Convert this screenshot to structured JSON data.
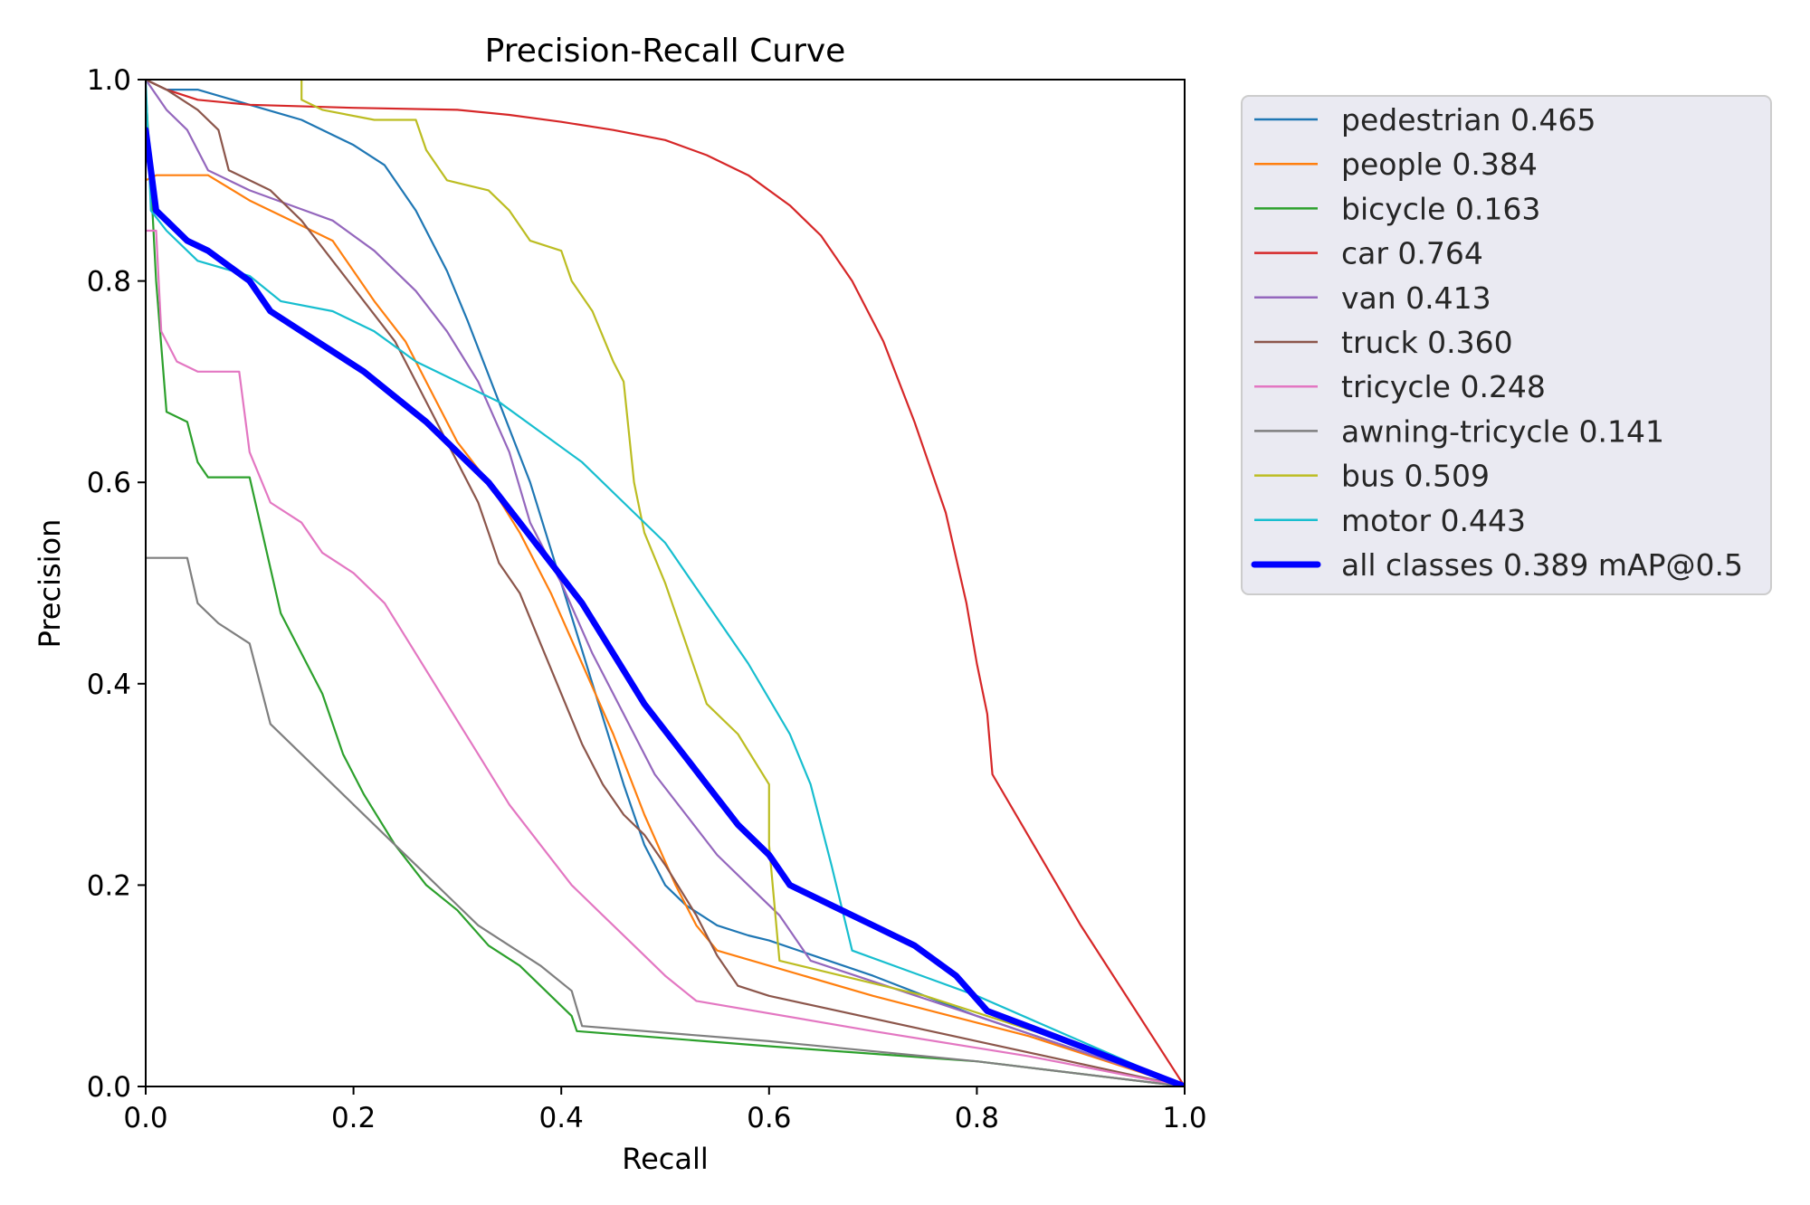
{
  "chart_data": {
    "type": "line",
    "title": "Precision-Recall Curve",
    "xlabel": "Recall",
    "ylabel": "Precision",
    "xlim": [
      0,
      1
    ],
    "ylim": [
      0,
      1
    ],
    "x_ticks": [
      "0.0",
      "0.2",
      "0.4",
      "0.6",
      "0.8",
      "1.0"
    ],
    "y_ticks": [
      "0.0",
      "0.2",
      "0.4",
      "0.6",
      "0.8",
      "1.0"
    ],
    "grid": false,
    "legend_position": "outside-right-top",
    "series": [
      {
        "name": "pedestrian",
        "label": "pedestrian 0.465",
        "ap": 0.465,
        "color": "#1f77b4",
        "points": [
          [
            0,
            1.0
          ],
          [
            0.02,
            0.99
          ],
          [
            0.05,
            0.99
          ],
          [
            0.1,
            0.975
          ],
          [
            0.15,
            0.96
          ],
          [
            0.2,
            0.935
          ],
          [
            0.23,
            0.915
          ],
          [
            0.26,
            0.87
          ],
          [
            0.29,
            0.81
          ],
          [
            0.31,
            0.76
          ],
          [
            0.34,
            0.68
          ],
          [
            0.37,
            0.6
          ],
          [
            0.4,
            0.5
          ],
          [
            0.43,
            0.4
          ],
          [
            0.46,
            0.3
          ],
          [
            0.48,
            0.24
          ],
          [
            0.5,
            0.2
          ],
          [
            0.52,
            0.18
          ],
          [
            0.55,
            0.16
          ],
          [
            0.58,
            0.15
          ],
          [
            0.6,
            0.145
          ],
          [
            0.7,
            0.11
          ],
          [
            0.8,
            0.07
          ],
          [
            0.9,
            0.035
          ],
          [
            1.0,
            0.0
          ]
        ]
      },
      {
        "name": "people",
        "label": "people 0.384",
        "ap": 0.384,
        "color": "#ff7f0e",
        "points": [
          [
            0,
            0.9
          ],
          [
            0.01,
            0.905
          ],
          [
            0.06,
            0.905
          ],
          [
            0.1,
            0.88
          ],
          [
            0.14,
            0.86
          ],
          [
            0.18,
            0.84
          ],
          [
            0.22,
            0.78
          ],
          [
            0.25,
            0.74
          ],
          [
            0.28,
            0.68
          ],
          [
            0.3,
            0.64
          ],
          [
            0.33,
            0.6
          ],
          [
            0.36,
            0.55
          ],
          [
            0.39,
            0.49
          ],
          [
            0.42,
            0.42
          ],
          [
            0.45,
            0.35
          ],
          [
            0.48,
            0.27
          ],
          [
            0.51,
            0.2
          ],
          [
            0.53,
            0.16
          ],
          [
            0.55,
            0.135
          ],
          [
            0.7,
            0.09
          ],
          [
            0.85,
            0.05
          ],
          [
            1.0,
            0.0
          ]
        ]
      },
      {
        "name": "bicycle",
        "label": "bicycle 0.163",
        "ap": 0.163,
        "color": "#2ca02c",
        "points": [
          [
            0,
            0.99
          ],
          [
            0.005,
            0.9
          ],
          [
            0.01,
            0.8
          ],
          [
            0.02,
            0.67
          ],
          [
            0.04,
            0.66
          ],
          [
            0.05,
            0.62
          ],
          [
            0.06,
            0.605
          ],
          [
            0.1,
            0.605
          ],
          [
            0.11,
            0.56
          ],
          [
            0.13,
            0.47
          ],
          [
            0.15,
            0.43
          ],
          [
            0.17,
            0.39
          ],
          [
            0.19,
            0.33
          ],
          [
            0.21,
            0.29
          ],
          [
            0.24,
            0.24
          ],
          [
            0.27,
            0.2
          ],
          [
            0.3,
            0.175
          ],
          [
            0.33,
            0.14
          ],
          [
            0.36,
            0.12
          ],
          [
            0.39,
            0.09
          ],
          [
            0.41,
            0.07
          ],
          [
            0.415,
            0.055
          ],
          [
            0.6,
            0.04
          ],
          [
            0.8,
            0.025
          ],
          [
            1.0,
            0.0
          ]
        ]
      },
      {
        "name": "car",
        "label": "car 0.764",
        "ap": 0.764,
        "color": "#d62728",
        "points": [
          [
            0,
            1.0
          ],
          [
            0.02,
            0.99
          ],
          [
            0.05,
            0.98
          ],
          [
            0.1,
            0.975
          ],
          [
            0.2,
            0.972
          ],
          [
            0.3,
            0.97
          ],
          [
            0.35,
            0.965
          ],
          [
            0.4,
            0.958
          ],
          [
            0.45,
            0.95
          ],
          [
            0.5,
            0.94
          ],
          [
            0.54,
            0.925
          ],
          [
            0.58,
            0.905
          ],
          [
            0.62,
            0.875
          ],
          [
            0.65,
            0.845
          ],
          [
            0.68,
            0.8
          ],
          [
            0.71,
            0.74
          ],
          [
            0.74,
            0.66
          ],
          [
            0.77,
            0.57
          ],
          [
            0.79,
            0.48
          ],
          [
            0.8,
            0.42
          ],
          [
            0.81,
            0.37
          ],
          [
            0.815,
            0.31
          ],
          [
            0.9,
            0.16
          ],
          [
            1.0,
            0.0
          ]
        ]
      },
      {
        "name": "van",
        "label": "van 0.413",
        "ap": 0.413,
        "color": "#9467bd",
        "points": [
          [
            0,
            1.0
          ],
          [
            0.02,
            0.97
          ],
          [
            0.04,
            0.95
          ],
          [
            0.06,
            0.91
          ],
          [
            0.1,
            0.89
          ],
          [
            0.14,
            0.875
          ],
          [
            0.18,
            0.86
          ],
          [
            0.22,
            0.83
          ],
          [
            0.26,
            0.79
          ],
          [
            0.29,
            0.75
          ],
          [
            0.32,
            0.7
          ],
          [
            0.35,
            0.63
          ],
          [
            0.37,
            0.56
          ],
          [
            0.4,
            0.5
          ],
          [
            0.43,
            0.43
          ],
          [
            0.46,
            0.37
          ],
          [
            0.49,
            0.31
          ],
          [
            0.52,
            0.27
          ],
          [
            0.55,
            0.23
          ],
          [
            0.58,
            0.2
          ],
          [
            0.61,
            0.17
          ],
          [
            0.64,
            0.125
          ],
          [
            0.8,
            0.07
          ],
          [
            1.0,
            0.0
          ]
        ]
      },
      {
        "name": "truck",
        "label": "truck 0.360",
        "ap": 0.36,
        "color": "#8c564b",
        "points": [
          [
            0,
            1.0
          ],
          [
            0.02,
            0.99
          ],
          [
            0.05,
            0.97
          ],
          [
            0.07,
            0.95
          ],
          [
            0.08,
            0.91
          ],
          [
            0.1,
            0.9
          ],
          [
            0.12,
            0.89
          ],
          [
            0.15,
            0.86
          ],
          [
            0.18,
            0.82
          ],
          [
            0.21,
            0.78
          ],
          [
            0.24,
            0.74
          ],
          [
            0.26,
            0.7
          ],
          [
            0.28,
            0.66
          ],
          [
            0.3,
            0.62
          ],
          [
            0.32,
            0.58
          ],
          [
            0.34,
            0.52
          ],
          [
            0.36,
            0.49
          ],
          [
            0.38,
            0.44
          ],
          [
            0.4,
            0.39
          ],
          [
            0.42,
            0.34
          ],
          [
            0.44,
            0.3
          ],
          [
            0.46,
            0.27
          ],
          [
            0.48,
            0.25
          ],
          [
            0.5,
            0.22
          ],
          [
            0.53,
            0.17
          ],
          [
            0.55,
            0.13
          ],
          [
            0.57,
            0.1
          ],
          [
            0.6,
            0.09
          ],
          [
            0.8,
            0.045
          ],
          [
            1.0,
            0.0
          ]
        ]
      },
      {
        "name": "tricycle",
        "label": "tricycle 0.248",
        "ap": 0.248,
        "color": "#e377c2",
        "points": [
          [
            0,
            0.85
          ],
          [
            0.01,
            0.85
          ],
          [
            0.015,
            0.75
          ],
          [
            0.03,
            0.72
          ],
          [
            0.05,
            0.71
          ],
          [
            0.09,
            0.71
          ],
          [
            0.1,
            0.63
          ],
          [
            0.12,
            0.58
          ],
          [
            0.15,
            0.56
          ],
          [
            0.17,
            0.53
          ],
          [
            0.2,
            0.51
          ],
          [
            0.23,
            0.48
          ],
          [
            0.26,
            0.43
          ],
          [
            0.29,
            0.38
          ],
          [
            0.32,
            0.33
          ],
          [
            0.35,
            0.28
          ],
          [
            0.38,
            0.24
          ],
          [
            0.41,
            0.2
          ],
          [
            0.44,
            0.17
          ],
          [
            0.47,
            0.14
          ],
          [
            0.5,
            0.11
          ],
          [
            0.53,
            0.085
          ],
          [
            0.7,
            0.055
          ],
          [
            0.85,
            0.03
          ],
          [
            1.0,
            0.0
          ]
        ]
      },
      {
        "name": "awning-tricycle",
        "label": "awning-tricycle 0.141",
        "ap": 0.141,
        "color": "#7f7f7f",
        "points": [
          [
            0,
            0.525
          ],
          [
            0.04,
            0.525
          ],
          [
            0.05,
            0.48
          ],
          [
            0.07,
            0.46
          ],
          [
            0.1,
            0.44
          ],
          [
            0.12,
            0.36
          ],
          [
            0.15,
            0.33
          ],
          [
            0.18,
            0.3
          ],
          [
            0.2,
            0.28
          ],
          [
            0.23,
            0.25
          ],
          [
            0.26,
            0.22
          ],
          [
            0.29,
            0.19
          ],
          [
            0.32,
            0.16
          ],
          [
            0.35,
            0.14
          ],
          [
            0.38,
            0.12
          ],
          [
            0.41,
            0.095
          ],
          [
            0.42,
            0.06
          ],
          [
            0.6,
            0.045
          ],
          [
            0.8,
            0.025
          ],
          [
            1.0,
            0.0
          ]
        ]
      },
      {
        "name": "bus",
        "label": "bus 0.509",
        "ap": 0.509,
        "color": "#bcbd22",
        "points": [
          [
            0.15,
            1.0
          ],
          [
            0.15,
            0.98
          ],
          [
            0.17,
            0.97
          ],
          [
            0.22,
            0.96
          ],
          [
            0.26,
            0.96
          ],
          [
            0.27,
            0.93
          ],
          [
            0.29,
            0.9
          ],
          [
            0.33,
            0.89
          ],
          [
            0.35,
            0.87
          ],
          [
            0.37,
            0.84
          ],
          [
            0.4,
            0.83
          ],
          [
            0.41,
            0.8
          ],
          [
            0.43,
            0.77
          ],
          [
            0.45,
            0.72
          ],
          [
            0.46,
            0.7
          ],
          [
            0.47,
            0.6
          ],
          [
            0.48,
            0.55
          ],
          [
            0.5,
            0.5
          ],
          [
            0.52,
            0.44
          ],
          [
            0.54,
            0.38
          ],
          [
            0.57,
            0.35
          ],
          [
            0.6,
            0.3
          ],
          [
            0.6,
            0.24
          ],
          [
            0.61,
            0.125
          ],
          [
            0.75,
            0.09
          ],
          [
            0.9,
            0.04
          ],
          [
            1.0,
            0.0
          ]
        ]
      },
      {
        "name": "motor",
        "label": "motor 0.443",
        "ap": 0.443,
        "color": "#17becf",
        "points": [
          [
            0,
            1.0
          ],
          [
            0.005,
            0.87
          ],
          [
            0.02,
            0.85
          ],
          [
            0.05,
            0.82
          ],
          [
            0.1,
            0.805
          ],
          [
            0.13,
            0.78
          ],
          [
            0.18,
            0.77
          ],
          [
            0.22,
            0.75
          ],
          [
            0.26,
            0.72
          ],
          [
            0.3,
            0.7
          ],
          [
            0.34,
            0.68
          ],
          [
            0.38,
            0.65
          ],
          [
            0.42,
            0.62
          ],
          [
            0.46,
            0.58
          ],
          [
            0.5,
            0.54
          ],
          [
            0.54,
            0.48
          ],
          [
            0.58,
            0.42
          ],
          [
            0.62,
            0.35
          ],
          [
            0.64,
            0.3
          ],
          [
            0.66,
            0.22
          ],
          [
            0.68,
            0.135
          ],
          [
            0.8,
            0.09
          ],
          [
            0.9,
            0.045
          ],
          [
            1.0,
            0.0
          ]
        ]
      },
      {
        "name": "all classes",
        "label": "all classes 0.389 mAP@0.5",
        "ap": 0.389,
        "color": "#0000ff",
        "points": [
          [
            0,
            0.95
          ],
          [
            0.01,
            0.87
          ],
          [
            0.02,
            0.86
          ],
          [
            0.04,
            0.84
          ],
          [
            0.06,
            0.83
          ],
          [
            0.08,
            0.815
          ],
          [
            0.1,
            0.8
          ],
          [
            0.12,
            0.77
          ],
          [
            0.15,
            0.75
          ],
          [
            0.18,
            0.73
          ],
          [
            0.21,
            0.71
          ],
          [
            0.24,
            0.685
          ],
          [
            0.27,
            0.66
          ],
          [
            0.3,
            0.63
          ],
          [
            0.33,
            0.6
          ],
          [
            0.36,
            0.56
          ],
          [
            0.39,
            0.52
          ],
          [
            0.42,
            0.48
          ],
          [
            0.45,
            0.43
          ],
          [
            0.48,
            0.38
          ],
          [
            0.51,
            0.34
          ],
          [
            0.54,
            0.3
          ],
          [
            0.57,
            0.26
          ],
          [
            0.6,
            0.23
          ],
          [
            0.62,
            0.2
          ],
          [
            0.66,
            0.18
          ],
          [
            0.7,
            0.16
          ],
          [
            0.74,
            0.14
          ],
          [
            0.78,
            0.11
          ],
          [
            0.81,
            0.075
          ],
          [
            0.9,
            0.04
          ],
          [
            1.0,
            0.0
          ]
        ]
      }
    ]
  }
}
